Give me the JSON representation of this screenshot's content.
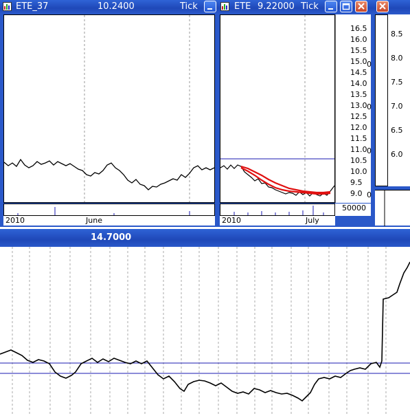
{
  "window_left": {
    "symbol": "ETE_37",
    "price": "10.2400",
    "mode": "Tick",
    "x_labels": [
      "2010",
      "June"
    ]
  },
  "window_right": {
    "symbol": "ETE",
    "price": "9.22000",
    "mode": "Tick",
    "y_ticks": [
      "16.5",
      "16.0",
      "15.5",
      "15.0",
      "14.5",
      "14.0",
      "13.5",
      "13.0",
      "12.5",
      "12.0",
      "11.5",
      "11.0",
      "10.5",
      "10.0",
      "9.5",
      "9.0"
    ],
    "volume_tick": "50000",
    "x_labels": [
      "2010",
      "July"
    ],
    "partial_axis_labels": [
      "0",
      "0",
      "0",
      "0"
    ]
  },
  "window_far_right": {
    "y_ticks": [
      "8.5",
      "8.0",
      "7.5",
      "7.0",
      "6.5",
      "6.0"
    ]
  },
  "window_bottom": {
    "price": "14.7000"
  },
  "colors": {
    "title_blue": "#1f48b8",
    "close_button": "#c8482a",
    "ma_line": "#e01010",
    "ref_line": "#1a1ab0"
  }
}
